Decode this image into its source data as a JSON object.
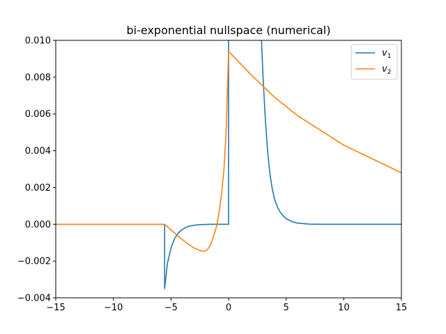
{
  "chart_data": {
    "type": "line",
    "title": "bi-exponential nullspace (numerical)",
    "xlabel": "",
    "ylabel": "",
    "xlim": [
      -15,
      15
    ],
    "ylim": [
      -0.004,
      0.01
    ],
    "xticks": [
      -15,
      -10,
      -5,
      0,
      5,
      10,
      15
    ],
    "xtick_labels": [
      "−15",
      "−10",
      "−5",
      "0",
      "5",
      "10",
      "15"
    ],
    "yticks": [
      -0.004,
      -0.002,
      0.0,
      0.002,
      0.004,
      0.006,
      0.008,
      0.01
    ],
    "ytick_labels": [
      "−0.004",
      "−0.002",
      "0.000",
      "0.002",
      "0.004",
      "0.006",
      "0.008",
      "0.010"
    ],
    "grid": false,
    "legend_position": "top-right",
    "series": [
      {
        "name": "v",
        "subscript": "1",
        "color": "#1f77b4",
        "x": [
          -15,
          -5.55,
          -5.55,
          -5.3,
          -5.0,
          -4.7,
          -4.4,
          -4.1,
          -3.8,
          -3.5,
          -3.0,
          -2.5,
          -2.0,
          -1.5,
          -1.0,
          -0.5,
          0.0,
          0.0,
          2.85,
          2.9,
          3.0,
          3.2,
          3.4,
          3.6,
          3.8,
          4.0,
          4.3,
          4.6,
          5.0,
          5.5,
          6.0,
          7.0,
          8.0,
          10.0,
          12.0,
          15.0
        ],
        "y": [
          0.0,
          0.0,
          -0.0035,
          -0.0021,
          -0.0013,
          -0.0008,
          -0.0005,
          -0.00032,
          -0.0002,
          -0.00012,
          -5e-05,
          -2e-05,
          -1e-05,
          0.0,
          0.0,
          0.0,
          0.0,
          0.0101,
          0.0101,
          0.0094,
          0.0079,
          0.0056,
          0.0039,
          0.0027,
          0.0019,
          0.00135,
          0.00085,
          0.00055,
          0.0003,
          0.00014,
          6e-05,
          1e-05,
          0.0,
          0.0,
          0.0,
          0.0
        ]
      },
      {
        "name": "v",
        "subscript": "2",
        "color": "#ff7f0e",
        "x": [
          -15,
          -5.55,
          -5.0,
          -4.5,
          -4.0,
          -3.5,
          -3.0,
          -2.5,
          -2.2,
          -2.0,
          -1.8,
          -1.6,
          -1.4,
          -1.2,
          -1.0,
          -0.8,
          -0.6,
          -0.4,
          -0.2,
          0.0,
          1.0,
          2.0,
          3.0,
          4.0,
          5.0,
          6.0,
          7.0,
          8.0,
          9.0,
          10.0,
          11.0,
          12.0,
          13.0,
          14.0,
          15.0
        ],
        "y": [
          0.0,
          0.0,
          -0.0003,
          -0.00058,
          -0.00084,
          -0.00108,
          -0.00129,
          -0.00143,
          -0.00147,
          -0.00145,
          -0.00135,
          -0.00115,
          -0.00085,
          -0.00045,
          0.0,
          0.00075,
          0.0017,
          0.003,
          0.0052,
          0.0094,
          0.00875,
          0.0081,
          0.0075,
          0.0069,
          0.0064,
          0.0059,
          0.0055,
          0.0051,
          0.0047,
          0.0043,
          0.004,
          0.0037,
          0.0034,
          0.0031,
          0.0028
        ]
      }
    ]
  }
}
